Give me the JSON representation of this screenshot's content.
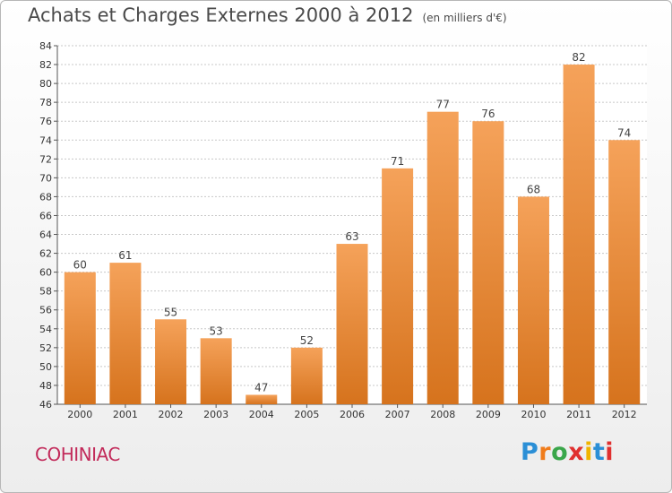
{
  "title": "Achats et Charges Externes 2000 à 2012",
  "unit_label": "(en milliers d'€)",
  "commune": "COHINIAC",
  "logo": {
    "text": "Proxiti",
    "colors": [
      "#2b8fd6",
      "#f07c1b",
      "#3aa64a",
      "#e0302f",
      "#f0b400",
      "#2b8fd6",
      "#e0302f"
    ]
  },
  "colors": {
    "bar": "#f5a25a",
    "bar_dark": "#d6731d",
    "commune": "#c22a5a"
  },
  "chart_data": {
    "type": "bar",
    "categories": [
      "2000",
      "2001",
      "2002",
      "2003",
      "2004",
      "2005",
      "2006",
      "2007",
      "2008",
      "2009",
      "2010",
      "2011",
      "2012"
    ],
    "values": [
      60,
      61,
      55,
      53,
      47,
      52,
      63,
      71,
      77,
      76,
      68,
      82,
      74
    ],
    "data_labels": [
      "60",
      "61",
      "55",
      "53",
      "47",
      "52",
      "63",
      "71",
      "77",
      "76",
      "68",
      "82",
      "74"
    ],
    "ylim": [
      46,
      84
    ],
    "yticks": [
      "46",
      "48",
      "50",
      "52",
      "54",
      "56",
      "58",
      "60",
      "62",
      "64",
      "66",
      "68",
      "70",
      "72",
      "74",
      "76",
      "78",
      "80",
      "82",
      "84"
    ],
    "grid": true
  }
}
